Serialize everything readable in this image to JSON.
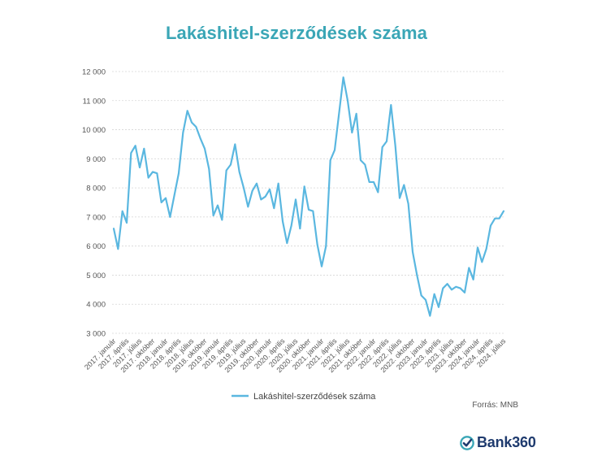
{
  "title": "Lakáshitel-szerződések száma",
  "source": "Forrás: MNB",
  "logo": {
    "text": "Bank360",
    "icon": "check-circle-icon",
    "color": "#1f3b6e",
    "accent": "#3aa6b6"
  },
  "chart_data": {
    "type": "line",
    "title": "Lakáshitel-szerződések száma",
    "xlabel": "",
    "ylabel": "",
    "ylim": [
      3000,
      12000
    ],
    "yticks": [
      3000,
      4000,
      5000,
      6000,
      7000,
      8000,
      9000,
      10000,
      11000,
      12000
    ],
    "ytick_labels": [
      "3 000",
      "4 000",
      "5 000",
      "6 000",
      "7 000",
      "8 000",
      "9 000",
      "10 000",
      "11 000",
      "12 000"
    ],
    "x_tick_labels": [
      "2017. január",
      "2017. április",
      "2017. július",
      "2017. október",
      "2018. január",
      "2018. április",
      "2018. július",
      "2018. október",
      "2019. január",
      "2019. április",
      "2019. július",
      "2019. október",
      "2020. január",
      "2020. április",
      "2020. július",
      "2020. október",
      "2021. január",
      "2021. április",
      "2021. július",
      "2021. október",
      "2022. január",
      "2022. április",
      "2022. július",
      "2022. október",
      "2023. január",
      "2023. április",
      "2023. július",
      "2023. október",
      "2024. január",
      "2024. április",
      "2024. július"
    ],
    "grid": true,
    "legend": "bottom",
    "series": [
      {
        "name": "Lakáshitel-szerződések száma",
        "color": "#5ab7e0",
        "values": [
          6600,
          5900,
          7200,
          6800,
          9200,
          9450,
          8700,
          9350,
          8350,
          8550,
          8500,
          7500,
          7650,
          7000,
          7750,
          8500,
          9900,
          10650,
          10250,
          10100,
          9700,
          9350,
          8650,
          7050,
          7400,
          6900,
          8600,
          8800,
          9500,
          8550,
          8000,
          7350,
          7900,
          8150,
          7600,
          7700,
          7950,
          7300,
          8150,
          6850,
          6100,
          6700,
          7600,
          6600,
          8050,
          7250,
          7200,
          6050,
          5300,
          6000,
          8950,
          9300,
          10550,
          11800,
          11000,
          9900,
          10550,
          8950,
          8800,
          8200,
          8200,
          7850,
          9400,
          9600,
          10850,
          9450,
          7650,
          8100,
          7450,
          5800,
          5000,
          4300,
          4150,
          3600,
          4350,
          3900,
          4550,
          4700,
          4500,
          4600,
          4550,
          4400,
          5250,
          4850,
          5950,
          5450,
          5900,
          6700,
          6950,
          6950,
          7200
        ]
      }
    ]
  }
}
